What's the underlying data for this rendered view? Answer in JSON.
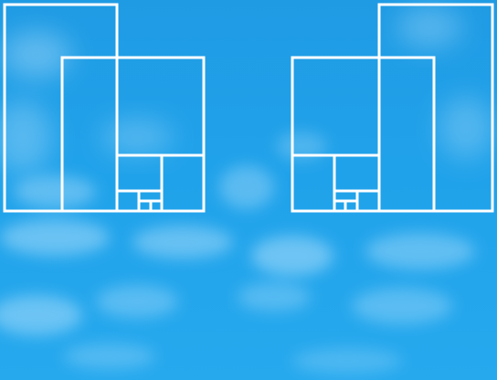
{
  "background": {
    "sky_color": "#1f9fe6",
    "cloud_color": "#d6efff"
  },
  "overlay": {
    "line_color": "#ffffff",
    "groups": [
      {
        "name": "left-golden-rectangle-set",
        "mirrored": false,
        "square_count": 9
      },
      {
        "name": "right-golden-rectangle-set",
        "mirrored": true,
        "square_count": 9
      }
    ]
  }
}
